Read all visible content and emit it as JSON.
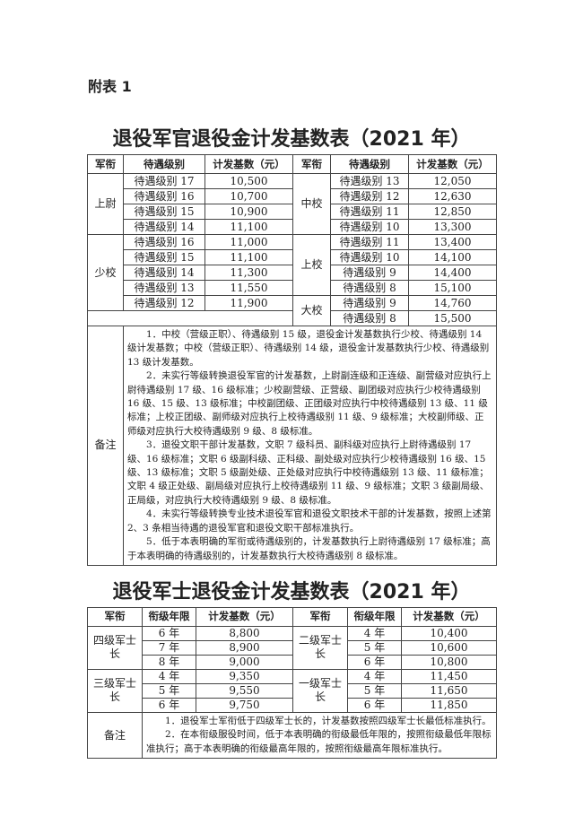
{
  "label": "附表 1",
  "officer": {
    "title": "退役军官退役金计发基数表（2021 年）",
    "headers": [
      "军衔",
      "待遇级别",
      "计发基数（元）",
      "军衔",
      "待遇级别",
      "计发基数（元）"
    ],
    "left": [
      {
        "rank": "上尉",
        "rows": [
          [
            "待遇级别 17",
            "10,500"
          ],
          [
            "待遇级别 16",
            "10,700"
          ],
          [
            "待遇级别 15",
            "10,900"
          ],
          [
            "待遇级别 14",
            "11,100"
          ]
        ]
      },
      {
        "rank": "少校",
        "rows": [
          [
            "待遇级别 16",
            "11,000"
          ],
          [
            "待遇级别 15",
            "11,100"
          ],
          [
            "待遇级别 14",
            "11,300"
          ],
          [
            "待遇级别 13",
            "11,550"
          ],
          [
            "待遇级别 12",
            "11,900"
          ]
        ]
      }
    ],
    "right": [
      {
        "rank": "中校",
        "rows": [
          [
            "待遇级别 13",
            "12,050"
          ],
          [
            "待遇级别 12",
            "12,630"
          ],
          [
            "待遇级别 11",
            "12,850"
          ],
          [
            "待遇级别 10",
            "13,300"
          ]
        ]
      },
      {
        "rank": "上校",
        "rows": [
          [
            "待遇级别 11",
            "13,400"
          ],
          [
            "待遇级别 10",
            "14,100"
          ],
          [
            "待遇级别 9",
            "14,400"
          ],
          [
            "待遇级别 8",
            "15,100"
          ]
        ]
      },
      {
        "rank": "大校",
        "rows": [
          [
            "待遇级别 9",
            "14,760"
          ],
          [
            "待遇级别 8",
            "15,500"
          ]
        ]
      }
    ],
    "notes_label": "备注",
    "notes": [
      "1．中校（营级正职）、待遇级别 15 级，退役金计发基数执行少校、待遇级别 14 级计发基数；中校（营级正职）、待遇级别 14 级，退役金计发基数执行少校、待遇级别 13 级计发基数。",
      "2．未实行等级转换退役军官的计发基数，上尉副连级和正连级、副营级对应执行上尉待遇级别 17 级、16 级标准；少校副营级、正营级、副团级对应执行少校待遇级别 16 级、15 级、13 级标准；中校副团级、正团级对应执行中校待遇级别 13 级、11 级标准；上校正团级、副师级对应执行上校待遇级别 11 级、9 级标准；大校副师级、正师级对应执行大校待遇级别 9 级、8 级标准。",
      "3．退役文职干部计发基数，文职 7 级科员、副科级对应执行上尉待遇级别 17 级、16 级标准；文职 6 级副科级、正科级、副处级对应执行少校待遇级别 16 级、15 级、13 级标准；文职 5 级副处级、正处级对应执行中校待遇级别 13 级、11 级标准；文职 4 级正处级、副局级对应执行上校待遇级别 11 级、9 级标准；文职 3 级副局级、正局级，对应执行大校待遇级别 9 级、8 级标准。",
      "4．未实行等级转换专业技术退役军官和退役文职技术干部的计发基数，按照上述第 2、3 条相当待遇的退役军官和退役文职干部标准执行。",
      "5．低于本表明确的军衔或待遇级别的，计发基数执行上尉待遇级别 17 级标准；高于本表明确的待遇级别的，计发基数执行大校待遇级别 8 级标准。"
    ]
  },
  "soldier": {
    "title": "退役军士退役金计发基数表（2021 年）",
    "headers": [
      "军衔",
      "衔级年限",
      "计发基数（元）",
      "军衔",
      "衔级年限",
      "计发基数（元）"
    ],
    "left": [
      {
        "rank": "四级军士长",
        "rows": [
          [
            "6 年",
            "8,800"
          ],
          [
            "7 年",
            "8,900"
          ],
          [
            "8 年",
            "9,000"
          ]
        ]
      },
      {
        "rank": "三级军士长",
        "rows": [
          [
            "4 年",
            "9,350"
          ],
          [
            "5 年",
            "9,550"
          ],
          [
            "6 年",
            "9,750"
          ]
        ]
      }
    ],
    "right": [
      {
        "rank": "二级军士长",
        "rows": [
          [
            "4 年",
            "10,400"
          ],
          [
            "5 年",
            "10,600"
          ],
          [
            "6 年",
            "10,800"
          ]
        ]
      },
      {
        "rank": "一级军士长",
        "rows": [
          [
            "4 年",
            "11,450"
          ],
          [
            "5 年",
            "11,650"
          ],
          [
            "6 年",
            "11,850"
          ]
        ]
      }
    ],
    "notes_label": "备注",
    "notes": [
      "1．退役军士军衔低于四级军士长的，计发基数按照四级军士长最低标准执行。",
      "2．在本衔级服役时间，低于本表明确的衔级最低年限的，按照衔级最低年限标准执行；高于本表明确的衔级最高年限的，按照衔级最高年限标准执行。"
    ]
  }
}
